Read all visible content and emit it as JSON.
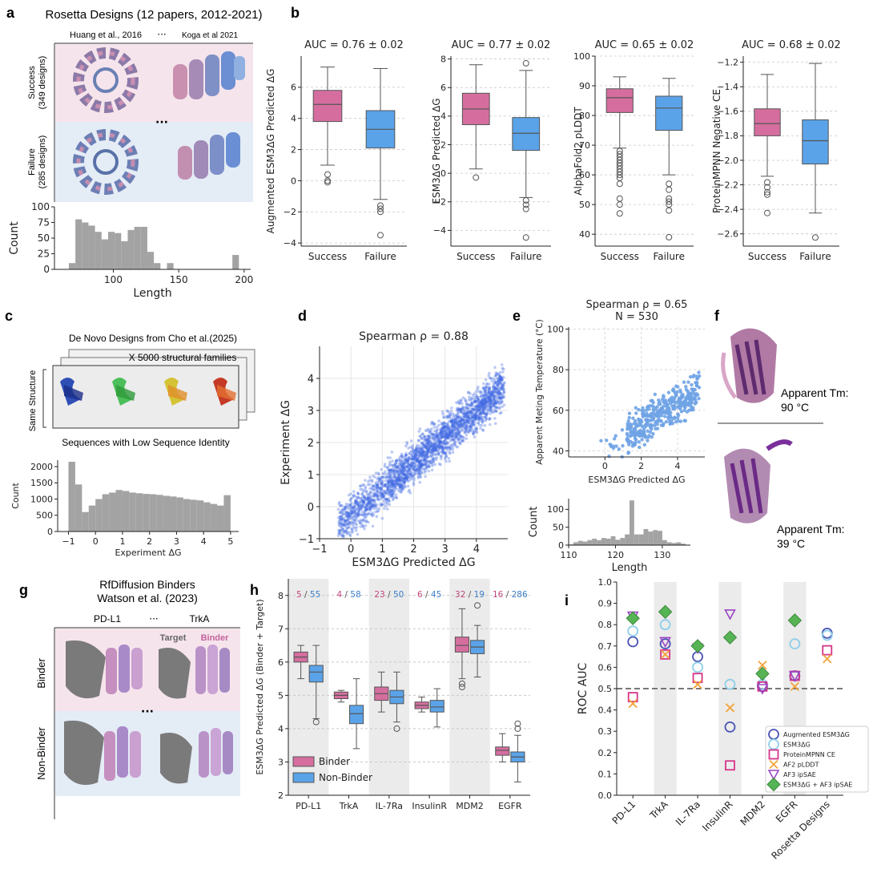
{
  "colors": {
    "success": "#d56e9f",
    "failure": "#5ba3e8",
    "hist": "#a3a3a3",
    "scatter": "#4169e1",
    "scatter_e": "#6fa3e6",
    "band": "#ebebeb",
    "binder_bg": "#f6e4ec",
    "nonbinder_bg": "#e4ecf6"
  },
  "panels": {
    "a": {
      "letter": "a",
      "title": "Rosetta Designs (12 papers, 2012-2021)",
      "left_ref": "Huang et al., 2016",
      "right_ref": "Koga et al 2021",
      "ellipsis": "···",
      "row1": "Success",
      "row1b": "(349 designs)",
      "row2": "Failure",
      "row2b": "(285 designs)"
    },
    "b": {
      "letter": "b"
    },
    "c": {
      "letter": "c",
      "title": "De Novo Designs from Cho et al.(2025)",
      "stack_label": "X 5000 structural families",
      "side_label": "Same Structure",
      "bottom_label": "Sequences with Low Sequence Identity"
    },
    "d": {
      "letter": "d"
    },
    "e": {
      "letter": "e"
    },
    "f": {
      "letter": "f",
      "top_label": "Apparent Tm:",
      "top_value": "90 °C",
      "bottom_label": "Apparent Tm:",
      "bottom_value": "39 °C"
    },
    "g": {
      "letter": "g",
      "title1": "RfDiffusion Binders",
      "title2": "Watson et al. (2023)",
      "left_ref": "PD-L1",
      "right_ref": "TrkA",
      "ellipsis": "···",
      "row1": "Binder",
      "row2": "Non-Binder",
      "target": "Target",
      "binder": "Binder"
    },
    "h": {
      "letter": "h"
    },
    "i": {
      "letter": "i"
    }
  },
  "chart_data": [
    {
      "id": "a_hist",
      "type": "bar",
      "xlabel": "Length",
      "ylabel": "Count",
      "xlim": [
        55,
        205
      ],
      "ylim": [
        0,
        100
      ],
      "xticks": [
        100,
        150,
        200
      ],
      "yticks": [
        0,
        25,
        50,
        75,
        100
      ],
      "bins": [
        [
          66,
          71,
          10
        ],
        [
          71,
          76,
          80
        ],
        [
          76,
          81,
          75
        ],
        [
          81,
          86,
          70
        ],
        [
          86,
          91,
          60
        ],
        [
          91,
          96,
          48
        ],
        [
          96,
          101,
          60
        ],
        [
          101,
          106,
          58
        ],
        [
          106,
          111,
          45
        ],
        [
          111,
          116,
          63
        ],
        [
          116,
          121,
          68
        ],
        [
          121,
          126,
          68
        ],
        [
          126,
          131,
          28
        ],
        [
          131,
          136,
          10
        ],
        [
          141,
          146,
          10
        ],
        [
          146,
          151,
          0
        ],
        [
          151,
          156,
          0
        ],
        [
          166,
          171,
          0
        ],
        [
          191,
          196,
          23
        ]
      ]
    },
    {
      "id": "b1",
      "type": "box",
      "title": "AUC = 0.76 ± 0.02",
      "ylabel": "Augmented ESM3ΔG Predicted ΔG",
      "categories": [
        "Success",
        "Failure"
      ],
      "ylim": [
        -4.2,
        8
      ],
      "yticks": [
        -4,
        -2,
        0,
        2,
        4,
        6
      ],
      "boxes": [
        {
          "name": "Success",
          "whisker_low": 1.0,
          "q1": 3.8,
          "median": 4.9,
          "q3": 5.8,
          "whisker_high": 7.3,
          "outliers": [
            0.4,
            0.0,
            -0.1
          ]
        },
        {
          "name": "Failure",
          "whisker_low": -1.2,
          "q1": 2.1,
          "median": 3.3,
          "q3": 4.5,
          "whisker_high": 7.2,
          "outliers": [
            -1.6,
            -1.8,
            -2.0,
            -3.5
          ]
        }
      ]
    },
    {
      "id": "b2",
      "type": "box",
      "title": "AUC = 0.77 ± 0.02",
      "ylabel": "ESM3ΔG Predicted ΔG",
      "categories": [
        "Success",
        "Failure"
      ],
      "ylim": [
        -5.1,
        8.2
      ],
      "yticks": [
        -4,
        -2,
        0,
        2,
        4,
        6,
        8
      ],
      "boxes": [
        {
          "name": "Success",
          "whisker_low": 0.3,
          "q1": 3.4,
          "median": 4.5,
          "q3": 5.6,
          "whisker_high": 7.6,
          "outliers": [
            -0.3
          ]
        },
        {
          "name": "Failure",
          "whisker_low": -1.7,
          "q1": 1.6,
          "median": 2.8,
          "q3": 3.9,
          "whisker_high": 7.2,
          "outliers": [
            7.7,
            -1.9,
            -2.2,
            -2.5,
            -4.5
          ]
        }
      ]
    },
    {
      "id": "b3",
      "type": "box",
      "title": "AUC = 0.65 ± 0.02",
      "ylabel": "AlphaFold2 pLDDT",
      "categories": [
        "Success",
        "Failure"
      ],
      "ylim": [
        36,
        100
      ],
      "yticks": [
        40,
        50,
        60,
        70,
        80,
        90,
        100
      ],
      "boxes": [
        {
          "name": "Success",
          "whisker_low": 69,
          "q1": 81,
          "median": 86,
          "q3": 89,
          "whisker_high": 93,
          "outliers": [
            68,
            67,
            66,
            65,
            64,
            63,
            62,
            61,
            60,
            59,
            57,
            52,
            50,
            47
          ]
        },
        {
          "name": "Failure",
          "whisker_low": 60,
          "q1": 75,
          "median": 82.5,
          "q3": 86.5,
          "whisker_high": 92.5,
          "outliers": [
            57,
            55,
            52,
            51,
            50,
            48,
            39
          ]
        }
      ]
    },
    {
      "id": "b4",
      "type": "box",
      "title": "AUC = 0.68 ± 0.02",
      "ylabel": "ProteinMPNN Negative CE",
      "categories": [
        "Success",
        "Failure"
      ],
      "ylim": [
        -2.7,
        -1.15
      ],
      "yticks": [
        -2.6,
        -2.4,
        -2.2,
        -2.0,
        -1.8,
        -1.6,
        -1.4,
        -1.2
      ],
      "boxes": [
        {
          "name": "Success",
          "whisker_low": -2.13,
          "q1": -1.8,
          "median": -1.7,
          "q3": -1.58,
          "whisker_high": -1.3,
          "outliers": [
            -2.18,
            -2.22,
            -2.26,
            -2.28,
            -2.43
          ]
        },
        {
          "name": "Failure",
          "whisker_low": -2.43,
          "q1": -2.03,
          "median": -1.84,
          "q3": -1.67,
          "whisker_high": -1.21,
          "outliers": [
            -2.63
          ]
        }
      ]
    },
    {
      "id": "c_hist",
      "type": "bar",
      "xlabel": "Experiment ΔG",
      "ylabel": "Count",
      "xlim": [
        -1.4,
        5.3
      ],
      "ylim": [
        0,
        2200
      ],
      "xticks": [
        -1,
        0,
        1,
        2,
        3,
        4,
        5
      ],
      "yticks": [
        0,
        500,
        1000,
        1500,
        2000
      ],
      "bins": [
        [
          -1.0,
          -0.75,
          2150
        ],
        [
          -0.75,
          -0.5,
          1450
        ],
        [
          -0.5,
          -0.25,
          600
        ],
        [
          -0.25,
          0.0,
          800
        ],
        [
          0.0,
          0.25,
          1000
        ],
        [
          0.25,
          0.5,
          1150
        ],
        [
          0.5,
          0.75,
          1200
        ],
        [
          0.75,
          1.0,
          1280
        ],
        [
          1.0,
          1.25,
          1250
        ],
        [
          1.25,
          1.5,
          1200
        ],
        [
          1.5,
          1.75,
          1180
        ],
        [
          1.75,
          2.0,
          1160
        ],
        [
          2.0,
          2.25,
          1150
        ],
        [
          2.25,
          2.5,
          1130
        ],
        [
          2.5,
          2.75,
          1100
        ],
        [
          2.75,
          3.0,
          1080
        ],
        [
          3.0,
          3.25,
          1050
        ],
        [
          3.25,
          3.5,
          1000
        ],
        [
          3.5,
          3.75,
          980
        ],
        [
          3.75,
          4.0,
          960
        ],
        [
          4.0,
          4.25,
          900
        ],
        [
          4.25,
          4.5,
          850
        ],
        [
          4.5,
          4.75,
          800
        ],
        [
          4.75,
          5.0,
          1120
        ]
      ]
    },
    {
      "id": "d_scatter",
      "type": "scatter",
      "title": "Spearman ρ = 0.88",
      "xlabel": "ESM3ΔG Predicted ΔG",
      "ylabel": "Experiment ΔG",
      "xlim": [
        -1,
        5
      ],
      "ylim": [
        -1,
        5
      ],
      "xticks": [
        -1,
        0,
        1,
        2,
        3,
        4
      ],
      "yticks": [
        -1,
        0,
        1,
        2,
        3,
        4
      ],
      "grid": true
    },
    {
      "id": "e_scatter",
      "type": "scatter",
      "title": "Spearman ρ = 0.65",
      "subtitle": "N = 530",
      "xlabel": "ESM3ΔG Predicted ΔG",
      "ylabel": "Apparent Meting Temperature (°C)",
      "xlim": [
        -2,
        5.5
      ],
      "ylim": [
        37,
        101
      ],
      "xticks": [
        0,
        2,
        4
      ],
      "yticks": [
        40,
        60,
        80,
        100
      ],
      "grid": true
    },
    {
      "id": "e_hist",
      "type": "bar",
      "xlabel": "Length",
      "ylabel": "Count",
      "xlim": [
        110,
        136
      ],
      "ylim": [
        0,
        130
      ],
      "xticks": [
        110,
        120,
        130
      ],
      "yticks": [
        0,
        50,
        100
      ],
      "bins": [
        [
          110,
          111,
          2
        ],
        [
          111,
          112,
          8
        ],
        [
          112,
          113,
          12
        ],
        [
          113,
          114,
          10
        ],
        [
          114,
          115,
          14
        ],
        [
          115,
          116,
          18
        ],
        [
          116,
          117,
          14
        ],
        [
          117,
          118,
          20
        ],
        [
          118,
          119,
          18
        ],
        [
          119,
          120,
          25
        ],
        [
          120,
          121,
          15
        ],
        [
          121,
          122,
          20
        ],
        [
          122,
          123,
          30
        ],
        [
          123,
          124,
          125
        ],
        [
          124,
          125,
          30
        ],
        [
          125,
          126,
          30
        ],
        [
          126,
          127,
          45
        ],
        [
          127,
          128,
          38
        ],
        [
          128,
          129,
          42
        ],
        [
          129,
          130,
          40
        ],
        [
          130,
          131,
          14
        ],
        [
          131,
          132,
          8
        ],
        [
          132,
          133,
          6
        ],
        [
          133,
          134,
          8
        ],
        [
          134,
          135,
          4
        ]
      ]
    },
    {
      "id": "h_box",
      "type": "box",
      "ylabel": "ESM3ΔG Predicted ΔG (Binder + Target)",
      "categories": [
        "PD-L1",
        "TrkA",
        "IL-7Ra",
        "InsulinR",
        "MDM2",
        "EGFR"
      ],
      "ylim": [
        2,
        8.5
      ],
      "yticks": [
        2,
        3,
        4,
        5,
        6,
        7,
        8
      ],
      "counts_binder": [
        "5",
        "4",
        "23",
        "6",
        "32",
        "16"
      ],
      "counts_nonbinder": [
        "55",
        "58",
        "50",
        "45",
        "19",
        "286"
      ],
      "legend": [
        "Binder",
        "Non-Binder"
      ],
      "boxes": [
        {
          "name": "PD-L1 Binder",
          "whisker_low": 5.5,
          "q1": 6.0,
          "median": 6.15,
          "q3": 6.3,
          "whisker_high": 6.5,
          "outliers": []
        },
        {
          "name": "PD-L1 Non-Binder",
          "whisker_low": 4.3,
          "q1": 5.4,
          "median": 5.7,
          "q3": 5.9,
          "whisker_high": 6.5,
          "outliers": [
            4.2
          ]
        },
        {
          "name": "TrkA Binder",
          "whisker_low": 4.8,
          "q1": 4.9,
          "median": 5.0,
          "q3": 5.1,
          "whisker_high": 5.15,
          "outliers": []
        },
        {
          "name": "TrkA Non-Binder",
          "whisker_low": 3.4,
          "q1": 4.15,
          "median": 4.45,
          "q3": 4.7,
          "whisker_high": 5.5,
          "outliers": []
        },
        {
          "name": "IL-7Ra Binder",
          "whisker_low": 4.5,
          "q1": 4.85,
          "median": 5.05,
          "q3": 5.25,
          "whisker_high": 5.7,
          "outliers": []
        },
        {
          "name": "IL-7Ra Non-Binder",
          "whisker_low": 4.2,
          "q1": 4.75,
          "median": 4.95,
          "q3": 5.15,
          "whisker_high": 5.7,
          "outliers": [
            4.0
          ]
        },
        {
          "name": "InsulinR Binder",
          "whisker_low": 4.5,
          "q1": 4.6,
          "median": 4.7,
          "q3": 4.8,
          "whisker_high": 4.95,
          "outliers": []
        },
        {
          "name": "InsulinR Non-Binder",
          "whisker_low": 4.05,
          "q1": 4.5,
          "median": 4.65,
          "q3": 4.85,
          "whisker_high": 5.2,
          "outliers": []
        },
        {
          "name": "MDM2 Binder",
          "whisker_low": 5.5,
          "q1": 6.3,
          "median": 6.5,
          "q3": 6.75,
          "whisker_high": 7.6,
          "outliers": [
            5.35,
            5.25
          ]
        },
        {
          "name": "MDM2 Non-Binder",
          "whisker_low": 5.55,
          "q1": 6.25,
          "median": 6.45,
          "q3": 6.65,
          "whisker_high": 7.1,
          "outliers": [
            7.7
          ]
        },
        {
          "name": "EGFR Binder",
          "whisker_low": 3.0,
          "q1": 3.2,
          "median": 3.35,
          "q3": 3.45,
          "whisker_high": 3.85,
          "outliers": []
        },
        {
          "name": "EGFR Non-Binder",
          "whisker_low": 2.4,
          "q1": 3.0,
          "median": 3.15,
          "q3": 3.3,
          "whisker_high": 3.8,
          "outliers": [
            4.0,
            4.15
          ]
        }
      ]
    },
    {
      "id": "i_points",
      "type": "scatter",
      "ylabel": "ROC AUC",
      "categories": [
        "PD-L1",
        "TrkA",
        "IL-7Ra",
        "InsulinR",
        "MDM2",
        "EGFR",
        "Rosetta Designs"
      ],
      "ylim": [
        0.0,
        1.0
      ],
      "yticks": [
        0.0,
        0.1,
        0.2,
        0.3,
        0.4,
        0.5,
        0.6,
        0.7,
        0.8,
        0.9,
        1.0
      ],
      "reference_line": 0.5,
      "series": [
        {
          "name": "Augmented ESM3ΔG",
          "marker": "circle",
          "color": "#4b54b5",
          "values": [
            0.72,
            0.71,
            0.65,
            0.32,
            0.51,
            0.56,
            0.76
          ]
        },
        {
          "name": "ESM3ΔG",
          "marker": "circle",
          "color": "#8ecfea",
          "values": [
            0.77,
            0.8,
            0.6,
            0.52,
            0.52,
            0.71,
            0.75
          ]
        },
        {
          "name": "ProteinMPNN CE",
          "marker": "square",
          "color": "#d6358a",
          "values": [
            0.46,
            0.66,
            0.55,
            0.14,
            0.51,
            0.56,
            0.68
          ]
        },
        {
          "name": "AF2 pLDDT",
          "marker": "x",
          "color": "#f3a33a",
          "values": [
            0.43,
            0.66,
            0.52,
            0.41,
            0.61,
            0.51,
            0.64
          ]
        },
        {
          "name": "AF3 ipSAE",
          "marker": "triangle_down",
          "color": "#9a45c4",
          "values": [
            0.84,
            0.72,
            0.69,
            0.85,
            0.5,
            0.56,
            null
          ]
        },
        {
          "name": "ESM3ΔG + AF3 ipSAE",
          "marker": "diamond",
          "color": "#56b455",
          "values": [
            0.83,
            0.86,
            0.7,
            0.74,
            0.57,
            0.82,
            null
          ]
        }
      ]
    }
  ]
}
